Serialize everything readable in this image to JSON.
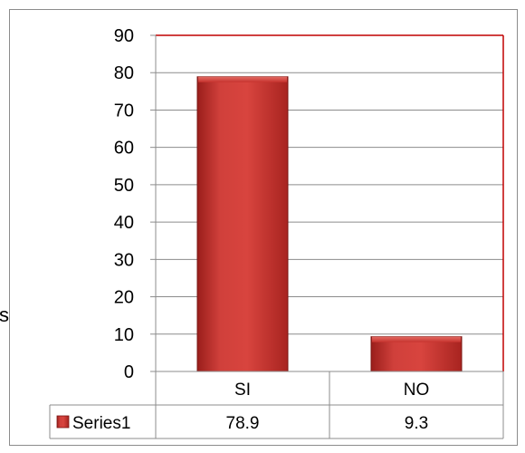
{
  "chart_data": {
    "type": "bar",
    "categories": [
      "SI",
      "NO"
    ],
    "series": [
      {
        "name": "Series1",
        "values": [
          78.9,
          9.3
        ],
        "color": "#c0302c"
      }
    ],
    "ylim": [
      0,
      90
    ],
    "yticks": [
      0,
      10,
      20,
      30,
      40,
      50,
      60,
      70,
      80,
      90
    ],
    "grid": true,
    "legend": "data-table",
    "plot_border_color": "#c00000"
  },
  "cut_off_text": "s"
}
